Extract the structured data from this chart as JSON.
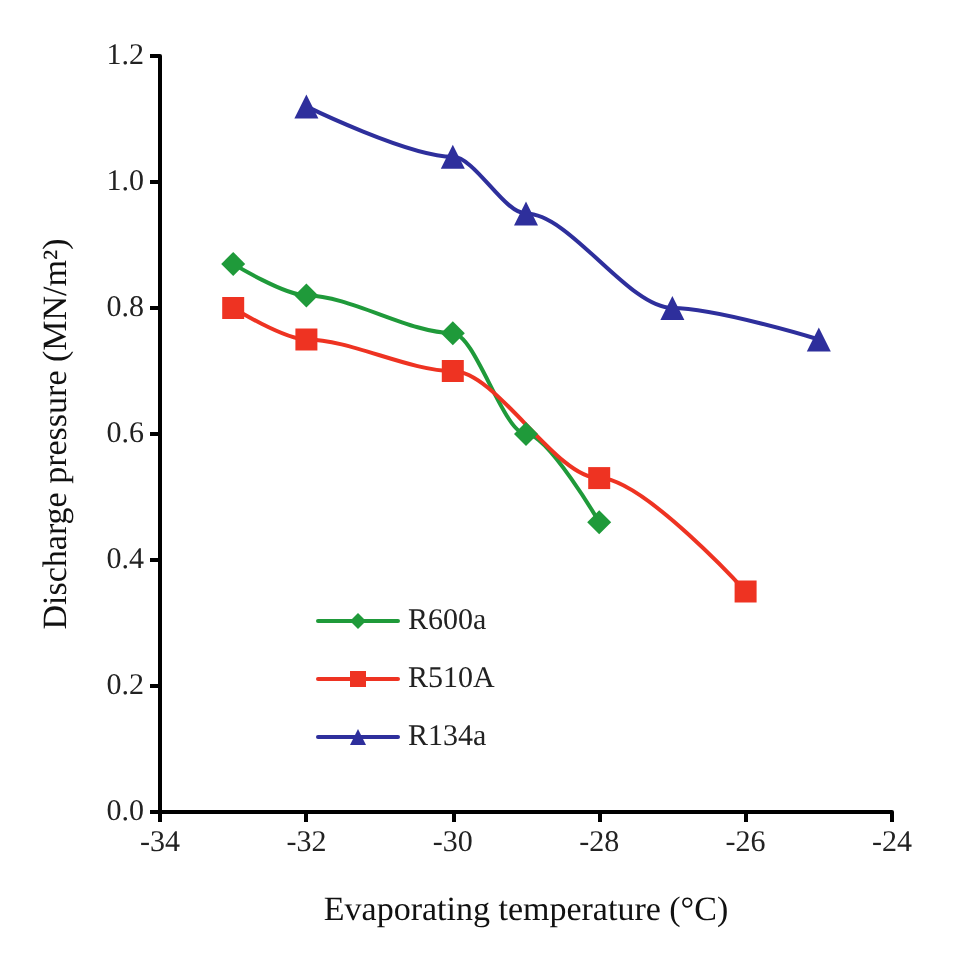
{
  "chart_data": {
    "type": "line",
    "xlabel": "Evaporating temperature (°C)",
    "ylabel": "Discharge pressure (MN/m²)",
    "xlim": [
      -34,
      -24
    ],
    "xticks": [
      -34,
      -32,
      -30,
      -28,
      -26,
      -24
    ],
    "ylim": [
      0,
      1.2
    ],
    "yticks": [
      {
        "value": 0,
        "label": "0.0"
      },
      0.2,
      0.4,
      0.6,
      0.8,
      {
        "value": 1,
        "label": "1.0"
      },
      1.2
    ],
    "grid": false,
    "legend": "bottom left",
    "line_style": "solid",
    "series": [
      {
        "name": "R600a",
        "color": "#1f9a3a",
        "marker": "diamond",
        "x": [
          -33,
          -32,
          -30,
          -29,
          -28
        ],
        "values": [
          0.87,
          0.82,
          0.76,
          0.6,
          0.46
        ]
      },
      {
        "name": "R510A",
        "color": "#ee3322",
        "marker": "square",
        "x": [
          -33,
          -32,
          -30,
          -28,
          -26
        ],
        "values": [
          0.8,
          0.75,
          0.7,
          0.53,
          0.35
        ]
      },
      {
        "name": "R134a",
        "color": "#2e2f9c",
        "marker": "triangle",
        "x": [
          -32,
          -30,
          -29,
          -27,
          -25
        ],
        "values": [
          1.12,
          1.04,
          0.95,
          0.8,
          0.75
        ]
      }
    ]
  }
}
